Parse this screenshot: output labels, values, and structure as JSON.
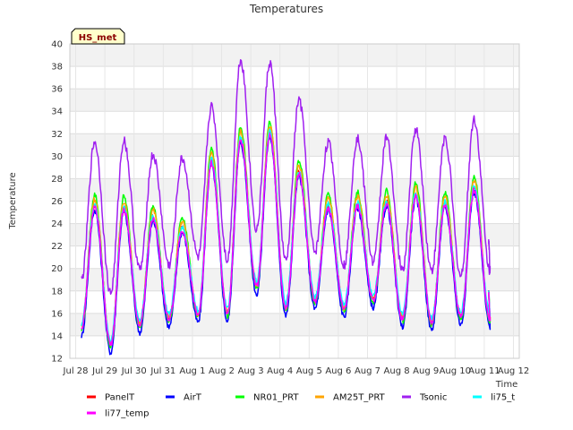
{
  "chart_data": {
    "type": "line",
    "title": "Temperatures",
    "xlabel": "Time",
    "ylabel": "Temperature",
    "badge": "HS_met",
    "ylim": [
      12,
      40
    ],
    "yticks": [
      12,
      14,
      16,
      18,
      20,
      22,
      24,
      26,
      28,
      30,
      32,
      34,
      36,
      38,
      40
    ],
    "xlim": [
      -0.2,
      15.2
    ],
    "xticks": [
      {
        "v": 0,
        "label": "Jul 28"
      },
      {
        "v": 1,
        "label": "Jul 29"
      },
      {
        "v": 2,
        "label": "Jul 30"
      },
      {
        "v": 3,
        "label": "Jul 31"
      },
      {
        "v": 4,
        "label": "Aug 1"
      },
      {
        "v": 5,
        "label": "Aug 2"
      },
      {
        "v": 6,
        "label": "Aug 3"
      },
      {
        "v": 7,
        "label": "Aug 4"
      },
      {
        "v": 8,
        "label": "Aug 5"
      },
      {
        "v": 9,
        "label": "Aug 6"
      },
      {
        "v": 10,
        "label": "Aug 7"
      },
      {
        "v": 11,
        "label": "Aug 8"
      },
      {
        "v": 12,
        "label": "Aug 9"
      },
      {
        "v": 13,
        "label": "Aug 10"
      },
      {
        "v": 14,
        "label": "Aug 11"
      },
      {
        "v": 15,
        "label": "Aug 12"
      }
    ],
    "daily": {
      "day_offset": 0.2,
      "base_min": [
        14.5,
        13.0,
        14.8,
        15.3,
        15.7,
        15.8,
        18.2,
        16.3,
        16.9,
        16.2,
        17.0,
        15.3,
        15.0,
        15.5,
        15.3
      ],
      "base_max": [
        0,
        26.0,
        25.8,
        25.0,
        24.0,
        30.0,
        32.0,
        32.5,
        29.0,
        26.0,
        26.2,
        26.3,
        27.0,
        26.2,
        27.6
      ],
      "tsonic_min": [
        19.0,
        17.8,
        19.9,
        20.3,
        21.0,
        20.8,
        23.5,
        20.6,
        21.5,
        20.3,
        20.6,
        19.8,
        19.8,
        19.3,
        19.8
      ],
      "tsonic_max": [
        0,
        31.3,
        31.4,
        30.1,
        29.8,
        34.4,
        38.6,
        38.3,
        35.0,
        31.2,
        31.6,
        31.6,
        32.4,
        31.6,
        33.3
      ],
      "end_x": 14.15,
      "end_base": 17.8,
      "end_tsonic": 22.6
    },
    "series": [
      {
        "name": "PanelT",
        "color": "#ff0000",
        "offset_min": 0.2,
        "offset_max": -0.4
      },
      {
        "name": "AirT",
        "color": "#0000ff",
        "offset_min": -0.5,
        "offset_max": -0.8
      },
      {
        "name": "NR01_PRT",
        "color": "#00ff00",
        "offset_min": 0.0,
        "offset_max": 0.6
      },
      {
        "name": "AM25T_PRT",
        "color": "#ffa500",
        "offset_min": 0.3,
        "offset_max": 0.2
      },
      {
        "name": "Tsonic",
        "color": "#a020f0",
        "tsonic": true
      },
      {
        "name": "li75_t",
        "color": "#00ffff",
        "offset_min": 0.6,
        "offset_max": -0.3
      },
      {
        "name": "li77_temp",
        "color": "#ff00ff",
        "offset_min": 0.2,
        "offset_max": -0.6
      }
    ]
  }
}
